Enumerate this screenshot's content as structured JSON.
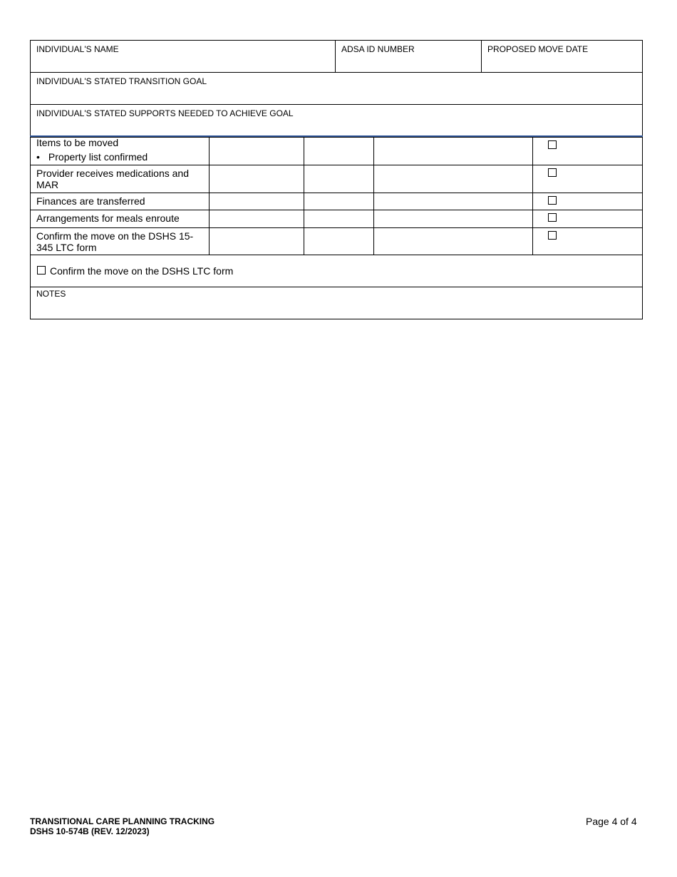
{
  "header_fields": {
    "name_label": "INDIVIDUAL'S NAME",
    "adsa_label": "ADSA ID NUMBER",
    "move_date_label": "PROPOSED MOVE DATE",
    "goal_label": "INDIVIDUAL'S STATED TRANSITION GOAL",
    "supports_label": "INDIVIDUAL'S STATED SUPPORTS NEEDED TO ACHIEVE GOAL"
  },
  "rows": [
    {
      "label": "Items to be moved",
      "bullet": "Property list confirmed",
      "checked": false
    },
    {
      "label": "Provider receives medications and MAR",
      "checked": false
    },
    {
      "label": "Finances are transferred",
      "checked": false
    },
    {
      "label": "Arrangements for meals enroute",
      "checked": false
    },
    {
      "label": "Confirm the move on the DSHS 15-345 LTC form",
      "checked": false
    }
  ],
  "confirm": {
    "label": "Confirm the move on the DSHS LTC form",
    "checked": false
  },
  "notes_label": "NOTES",
  "footer": {
    "title": "TRANSITIONAL CARE PLANNING TRACKING",
    "form_id": "DSHS 10-574B (REV. 12/2023)",
    "page": "Page 4 of 4"
  },
  "colors": {
    "divider": "#2f5597"
  }
}
